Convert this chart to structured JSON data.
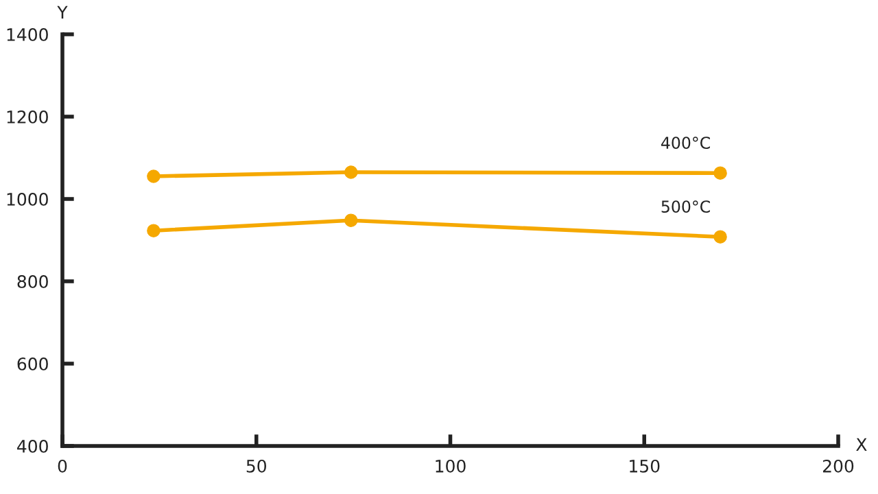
{
  "chart_data": {
    "type": "line",
    "xlabel": "X",
    "ylabel": "Y",
    "xlim": [
      0,
      200
    ],
    "xticks": [
      0,
      50,
      100,
      150,
      200
    ],
    "ylim": [
      400,
      1400
    ],
    "yticks": [
      400,
      600,
      800,
      1000,
      1200,
      1400
    ],
    "grid": false,
    "marker": "circle",
    "line_style": "solid",
    "series": [
      {
        "name": "400°C",
        "color": "#f5a800",
        "x": [
          23.5,
          74.4,
          169.6
        ],
        "values": [
          1055,
          1065,
          1063
        ]
      },
      {
        "name": "500°C",
        "color": "#f5a800",
        "x": [
          23.5,
          74.4,
          169.6
        ],
        "values": [
          923,
          948,
          908
        ]
      }
    ]
  }
}
